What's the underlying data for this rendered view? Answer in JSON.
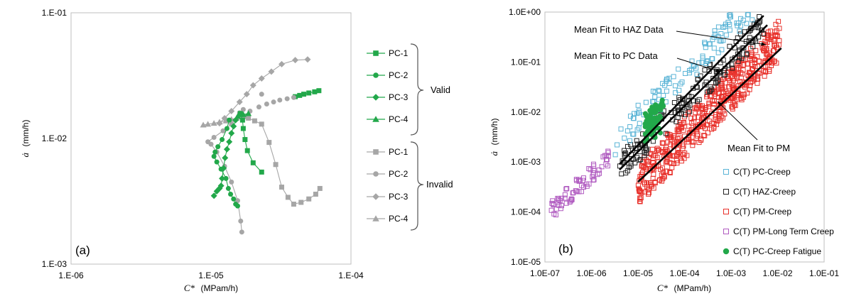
{
  "chart_data": [
    {
      "type": "scatter",
      "panel_label": "(a)",
      "xlabel": "C*",
      "xunit": "(MPam/h)",
      "ylabel": "ȧ",
      "yunit": "(mm/h)",
      "xscale": "log",
      "yscale": "log",
      "xlim": [
        1e-06,
        0.0001
      ],
      "ylim": [
        0.001,
        0.1
      ],
      "x_ticks": [
        "1.E-06",
        "1.E-05",
        "1.E-04"
      ],
      "y_ticks": [
        "1.E-03",
        "1.E-02",
        "1.E-01"
      ],
      "grid": false,
      "legend_placement": "right-outside",
      "groups": [
        {
          "label": "Valid",
          "series": [
            0,
            1,
            2,
            3
          ]
        },
        {
          "label": "Invalid",
          "series": [
            4,
            5,
            6,
            7
          ]
        }
      ],
      "series": [
        {
          "name": "PC-1",
          "marker": "square",
          "color": "#22a84a",
          "points": [
            [
              1.62e-05,
              0.0158
            ],
            [
              1.68e-05,
              0.014
            ],
            [
              1.7e-05,
              0.012
            ],
            [
              1.75e-05,
              0.0098
            ],
            [
              1.82e-05,
              0.008
            ],
            [
              2e-05,
              0.0064
            ],
            [
              2.3e-05,
              0.0054
            ]
          ]
        },
        {
          "name": "PC-2",
          "marker": "circle",
          "color": "#22a84a",
          "points": [
            [
              1.35e-05,
              0.014
            ],
            [
              1.3e-05,
              0.012
            ],
            [
              1.2e-05,
              0.0098
            ],
            [
              1.12e-05,
              0.0086
            ],
            [
              1.07e-05,
              0.0078
            ],
            [
              1.05e-05,
              0.0072
            ],
            [
              1.1e-05,
              0.0065
            ],
            [
              1.18e-05,
              0.0057
            ],
            [
              1.28e-05,
              0.0048
            ],
            [
              1.33e-05,
              0.004
            ],
            [
              1.38e-05,
              0.0036
            ],
            [
              1.45e-05,
              0.0033
            ],
            [
              1.5e-05,
              0.003
            ],
            [
              1.55e-05,
              0.0029
            ]
          ]
        },
        {
          "name": "PC-3",
          "marker": "diamond",
          "color": "#22a84a",
          "points": [
            [
              1.5e-05,
              0.014
            ],
            [
              1.45e-05,
              0.0125
            ],
            [
              1.4e-05,
              0.011
            ],
            [
              1.35e-05,
              0.0094
            ],
            [
              1.3e-05,
              0.0082
            ],
            [
              1.26e-05,
              0.007
            ],
            [
              1.23e-05,
              0.0058
            ],
            [
              1.2e-05,
              0.0048
            ],
            [
              1.18e-05,
              0.0042
            ],
            [
              1.15e-05,
              0.004
            ],
            [
              1.1e-05,
              0.0038
            ],
            [
              1.05e-05,
              0.0035
            ]
          ]
        },
        {
          "name": "PC-4",
          "marker": "triangle",
          "color": "#22a84a",
          "points": [
            [
              1.55e-05,
              0.015
            ],
            [
              1.62e-05,
              0.0155
            ],
            [
              1.7e-05,
              0.0155
            ],
            [
              1.85e-05,
              0.0158
            ]
          ]
        },
        {
          "name": "PC-1",
          "marker": "square",
          "color": "#a6a6a6",
          "points": [
            [
              1.65e-05,
              0.0153
            ],
            [
              1.75e-05,
              0.0149
            ],
            [
              1.85e-05,
              0.0145
            ],
            [
              2.05e-05,
              0.0138
            ],
            [
              2.3e-05,
              0.013
            ],
            [
              2.6e-05,
              0.0093
            ],
            [
              2.9e-05,
              0.0062
            ],
            [
              3.2e-05,
              0.0041
            ],
            [
              3.55e-05,
              0.0034
            ],
            [
              3.9e-05,
              0.003
            ],
            [
              4.4e-05,
              0.0031
            ],
            [
              5e-05,
              0.0033
            ],
            [
              5.6e-05,
              0.0036
            ],
            [
              6e-05,
              0.004
            ]
          ]
        },
        {
          "name": "PC-2",
          "marker": "circle",
          "color": "#a6a6a6",
          "points": [
            [
              1.55e-05,
              0.0145
            ],
            [
              1.4e-05,
              0.013
            ],
            [
              1.22e-05,
              0.0115
            ],
            [
              1.05e-05,
              0.0102
            ],
            [
              9.5e-06,
              0.0094
            ],
            [
              1e-05,
              0.009
            ],
            [
              1.1e-05,
              0.0078
            ],
            [
              1.25e-05,
              0.006
            ],
            [
              1.4e-05,
              0.0045
            ],
            [
              1.55e-05,
              0.0032
            ],
            [
              1.63e-05,
              0.0022
            ],
            [
              1.66e-05,
              0.0018
            ]
          ]
        },
        {
          "name": "PC-3",
          "marker": "diamond",
          "color": "#a6a6a6",
          "points": [
            [
              1.15e-05,
              0.0132
            ],
            [
              1.25e-05,
              0.0145
            ],
            [
              1.4e-05,
              0.0165
            ],
            [
              1.6e-05,
              0.0195
            ],
            [
              1.8e-05,
              0.0225
            ],
            [
              2e-05,
              0.0265
            ],
            [
              2.3e-05,
              0.03
            ],
            [
              2.7e-05,
              0.034
            ],
            [
              3.2e-05,
              0.039
            ],
            [
              4e-05,
              0.042
            ],
            [
              4.9e-05,
              0.0425
            ]
          ]
        },
        {
          "name": "PC-4",
          "marker": "triangle",
          "color": "#a6a6a6",
          "points": [
            [
              8.8e-06,
              0.0128
            ],
            [
              9.5e-06,
              0.013
            ],
            [
              1.05e-05,
              0.0132
            ],
            [
              1.15e-05,
              0.0135
            ],
            [
              1.28e-05,
              0.0138
            ],
            [
              1.4e-05,
              0.0142
            ],
            [
              1.52e-05,
              0.0145
            ]
          ]
        }
      ],
      "extra_series": [
        {
          "marker": "square",
          "color": "#22a84a",
          "points": [
            [
              4e-05,
              0.0215
            ],
            [
              4.3e-05,
              0.022
            ],
            [
              4.6e-05,
              0.0225
            ],
            [
              5e-05,
              0.023
            ],
            [
              5.5e-05,
              0.0235
            ],
            [
              5.9e-05,
              0.024
            ]
          ]
        },
        {
          "marker": "circle",
          "color": "#a6a6a6",
          "points": [
            [
              1.6e-05,
              0.0155
            ],
            [
              1.9e-05,
              0.0165
            ],
            [
              2.2e-05,
              0.0178
            ],
            [
              2.5e-05,
              0.0188
            ],
            [
              2.8e-05,
              0.0195
            ],
            [
              3.1e-05,
              0.0202
            ],
            [
              3.5e-05,
              0.0207
            ],
            [
              3.9e-05,
              0.0212
            ],
            [
              2.3e-05,
              0.0225
            ],
            [
              1.6e-05,
              0.016
            ],
            [
              1.7e-05,
              0.017
            ]
          ]
        }
      ]
    },
    {
      "type": "scatter",
      "panel_label": "(b)",
      "xlabel": "C*",
      "xunit": "(MPam/h)",
      "ylabel": "ȧ",
      "yunit": "(mm/h)",
      "xscale": "log",
      "yscale": "log",
      "xlim": [
        1e-07,
        0.1
      ],
      "ylim": [
        1e-05,
        1
      ],
      "x_ticks": [
        "1.0E-07",
        "1.0E-06",
        "1.0E-05",
        "1.0E-04",
        "1.0E-03",
        "1.0E-02",
        "1.0E-01"
      ],
      "y_ticks": [
        "1.0E-05",
        "1.0E-04",
        "1.0E-03",
        "1.0E-02",
        "1.0E-01",
        "1.0E+00"
      ],
      "grid": false,
      "legend_placement": "bottom-right",
      "series": [
        {
          "name": "C(T) PC-Creep",
          "marker": "open-square",
          "color": "#5ab4d6"
        },
        {
          "name": "C(T) HAZ-Creep",
          "marker": "open-square",
          "color": "#222222"
        },
        {
          "name": "C(T) PM-Creep",
          "marker": "open-square",
          "color": "#e8302a"
        },
        {
          "name": "C(T) PM-Long Term Creep",
          "marker": "open-square",
          "color": "#b05bc0"
        },
        {
          "name": "C(T) PC-Creep Fatigue",
          "marker": "circle",
          "color": "#22a84a"
        }
      ],
      "fit_lines": [
        {
          "label": "Mean Fit to HAZ Data",
          "from": [
            4e-06,
            0.0009
          ],
          "to": [
            0.005,
            0.85
          ]
        },
        {
          "label": "Mean Fit to PC Data",
          "from": [
            4e-06,
            0.0007
          ],
          "to": [
            0.006,
            0.55
          ]
        },
        {
          "label": "Mean Fit to PM",
          "from": [
            1e-05,
            0.0004
          ],
          "to": [
            0.012,
            0.19
          ]
        }
      ]
    }
  ]
}
